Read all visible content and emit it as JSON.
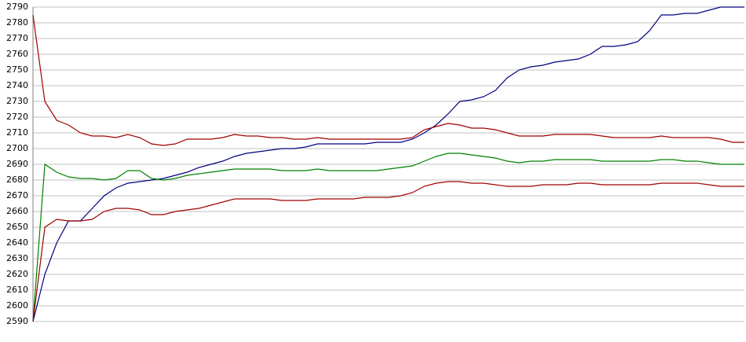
{
  "chart_data": {
    "type": "line",
    "ylim": [
      2590,
      2790
    ],
    "yticks": [
      2590,
      2600,
      2610,
      2620,
      2630,
      2640,
      2650,
      2660,
      2670,
      2680,
      2690,
      2700,
      2710,
      2720,
      2730,
      2740,
      2750,
      2760,
      2770,
      2780,
      2790
    ],
    "grid": true,
    "series": [
      {
        "color": "#000080",
        "values": [
          2590,
          2620,
          2640,
          2654,
          2654,
          2662,
          2670,
          2675,
          2678,
          2679,
          2680,
          2681,
          2683,
          2685,
          2688,
          2690,
          2692,
          2695,
          2697,
          2698,
          2699,
          2700,
          2700,
          2701,
          2703,
          2703,
          2703,
          2703,
          2703,
          2704,
          2704,
          2704,
          2706,
          2710,
          2715,
          2722,
          2730,
          2731,
          2733,
          2737,
          2745,
          2750,
          2752,
          2753,
          2755,
          2756,
          2757,
          2760,
          2765,
          2765,
          2766,
          2768,
          2775,
          2785,
          2785,
          2786,
          2786,
          2788,
          2790,
          2790,
          2790
        ]
      },
      {
        "color": "#a00000",
        "values": [
          2785,
          2730,
          2718,
          2715,
          2710,
          2708,
          2708,
          2707,
          2709,
          2707,
          2703,
          2702,
          2703,
          2706,
          2706,
          2706,
          2707,
          2709,
          2708,
          2708,
          2707,
          2707,
          2706,
          2706,
          2707,
          2706,
          2706,
          2706,
          2706,
          2706,
          2706,
          2706,
          2707,
          2712,
          2714,
          2716,
          2715,
          2713,
          2713,
          2712,
          2710,
          2708,
          2708,
          2708,
          2709,
          2709,
          2709,
          2709,
          2708,
          2707,
          2707,
          2707,
          2707,
          2708,
          2707,
          2707,
          2707,
          2707,
          2706,
          2704,
          2704
        ]
      },
      {
        "color": "#008000",
        "values": [
          2590,
          2690,
          2685,
          2682,
          2681,
          2681,
          2680,
          2681,
          2686,
          2686,
          2681,
          2680,
          2681,
          2683,
          2684,
          2685,
          2686,
          2687,
          2687,
          2687,
          2687,
          2686,
          2686,
          2686,
          2687,
          2686,
          2686,
          2686,
          2686,
          2686,
          2687,
          2688,
          2689,
          2692,
          2695,
          2697,
          2697,
          2696,
          2695,
          2694,
          2692,
          2691,
          2692,
          2692,
          2693,
          2693,
          2693,
          2693,
          2692,
          2692,
          2692,
          2692,
          2692,
          2693,
          2693,
          2692,
          2692,
          2691,
          2690,
          2690,
          2690
        ]
      },
      {
        "color": "#a00000",
        "values": [
          2590,
          2650,
          2655,
          2654,
          2654,
          2655,
          2660,
          2662,
          2662,
          2661,
          2658,
          2658,
          2660,
          2661,
          2662,
          2664,
          2666,
          2668,
          2668,
          2668,
          2668,
          2667,
          2667,
          2667,
          2668,
          2668,
          2668,
          2668,
          2669,
          2669,
          2669,
          2670,
          2672,
          2676,
          2678,
          2679,
          2679,
          2678,
          2678,
          2677,
          2676,
          2676,
          2676,
          2677,
          2677,
          2677,
          2678,
          2678,
          2677,
          2677,
          2677,
          2677,
          2677,
          2678,
          2678,
          2678,
          2678,
          2677,
          2676,
          2676,
          2676
        ]
      }
    ]
  }
}
